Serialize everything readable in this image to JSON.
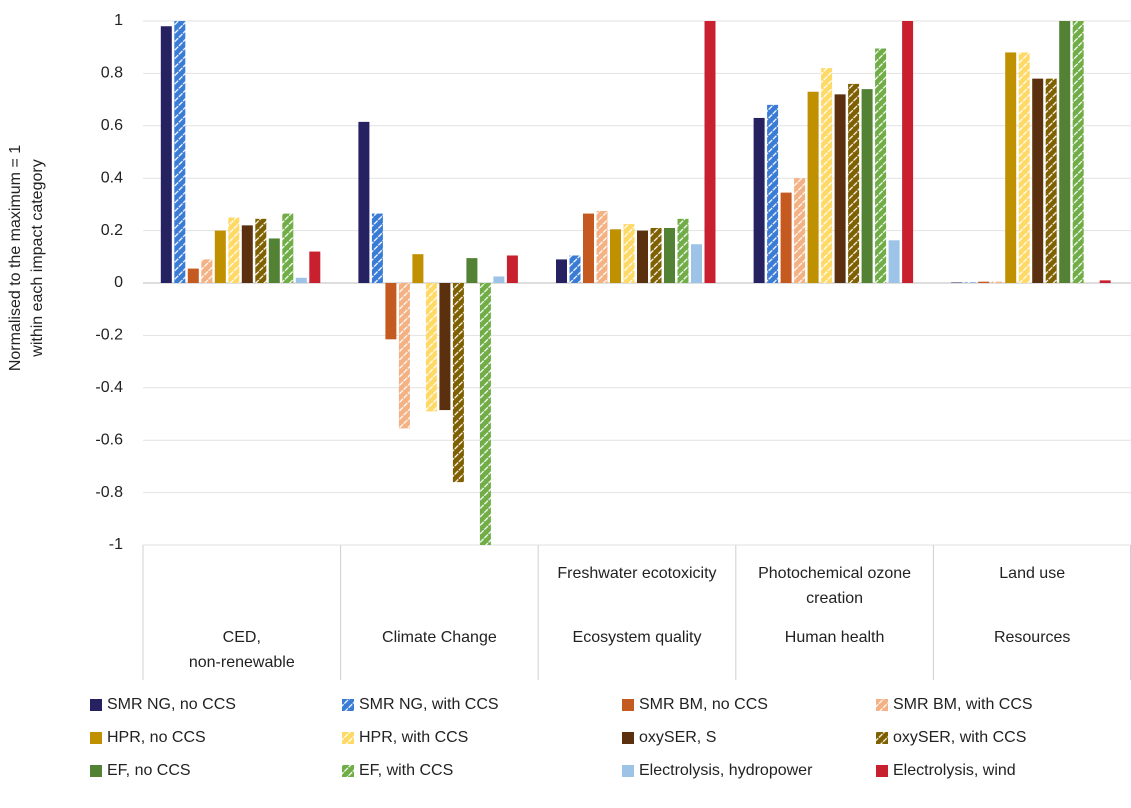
{
  "chart_data": {
    "type": "bar",
    "ylabel": "Normalised to the maximum = 1\nwithin each impact category",
    "categories": [
      "CED,\nnon-renewable",
      "Climate Change",
      "Ecosystem quality",
      "Human health",
      "Resources"
    ],
    "category_details": [
      null,
      null,
      "Freshwater ecotoxicity",
      "Photochemical ozone creation",
      "Land use"
    ],
    "ylim": [
      -1,
      1
    ],
    "yticks": [
      -1,
      -0.8,
      -0.6,
      -0.4,
      -0.2,
      0,
      0.2,
      0.4,
      0.6,
      0.8,
      1
    ],
    "grid": true,
    "legend": "bottom",
    "series": [
      {
        "name": "SMR NG, no CCS",
        "color": "#262262",
        "hatched": false,
        "values": [
          0.98,
          0.615,
          0.09,
          0.63,
          0.002
        ]
      },
      {
        "name": "SMR NG, with CCS",
        "color": "#3a7bd5",
        "hatched": true,
        "values": [
          1,
          0.265,
          0.105,
          0.68,
          0.002
        ]
      },
      {
        "name": "SMR BM, no CCS",
        "color": "#c55a20",
        "hatched": false,
        "values": [
          0.055,
          -0.215,
          0.265,
          0.345,
          0.005
        ]
      },
      {
        "name": "SMR BM, with CCS",
        "color": "#f4b183",
        "hatched": true,
        "values": [
          0.09,
          -0.555,
          0.275,
          0.4,
          0.005
        ]
      },
      {
        "name": "HPR, no CCS",
        "color": "#bf9000",
        "hatched": false,
        "values": [
          0.2,
          0.11,
          0.205,
          0.73,
          0.88
        ]
      },
      {
        "name": "HPR, with CCS",
        "color": "#ffd966",
        "hatched": true,
        "values": [
          0.25,
          -0.49,
          0.225,
          0.82,
          0.88
        ]
      },
      {
        "name": "oxySER, S",
        "color": "#5a300e",
        "hatched": false,
        "values": [
          0.22,
          -0.485,
          0.2,
          0.72,
          0.78
        ]
      },
      {
        "name": "oxySER, with CCS",
        "color": "#7f6000",
        "hatched": true,
        "values": [
          0.245,
          -0.76,
          0.21,
          0.76,
          0.78
        ]
      },
      {
        "name": "EF, no CCS",
        "color": "#548235",
        "hatched": false,
        "values": [
          0.17,
          0.095,
          0.21,
          0.74,
          1
        ]
      },
      {
        "name": "EF, with CCS",
        "color": "#70ad47",
        "hatched": true,
        "values": [
          0.265,
          -1,
          0.245,
          0.895,
          1
        ]
      },
      {
        "name": "Electrolysis, hydropower",
        "color": "#9dc3e6",
        "hatched": false,
        "values": [
          0.02,
          0.025,
          0.148,
          0.163,
          0
        ]
      },
      {
        "name": "Electrolysis, wind",
        "color": "#c8202f",
        "hatched": false,
        "values": [
          0.12,
          0.105,
          1,
          1,
          0.01
        ]
      }
    ]
  }
}
